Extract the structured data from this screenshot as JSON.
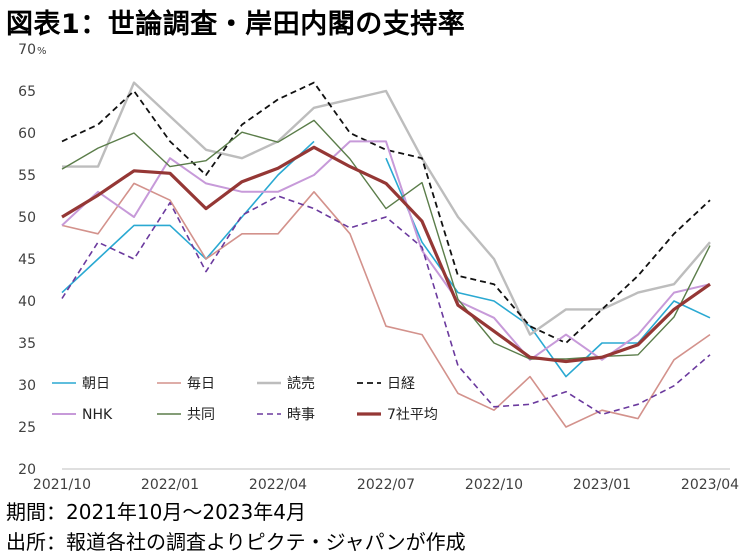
{
  "title": "図表1：世論調査・岸田内閣の支持率",
  "footer": {
    "period": "期間：2021年10月～2023年4月",
    "source": "出所：報道各社の調査よりピクテ・ジャパンが作成"
  },
  "chart_data": {
    "type": "line",
    "title": "図表1：世論調査・岸田内閣の支持率",
    "xlabel": "",
    "ylabel": "",
    "y_unit": "%",
    "ylim": [
      20,
      70
    ],
    "yticks": [
      20,
      25,
      30,
      35,
      40,
      45,
      50,
      55,
      60,
      65,
      70
    ],
    "grid": false,
    "legend_position": "bottom-left inside plot",
    "x": [
      "2021/10",
      "2021/11",
      "2021/12",
      "2022/01",
      "2022/02",
      "2022/03",
      "2022/04",
      "2022/05",
      "2022/06",
      "2022/07",
      "2022/08",
      "2022/09",
      "2022/10",
      "2022/11",
      "2022/12",
      "2023/01",
      "2023/02",
      "2023/03",
      "2023/04"
    ],
    "x_tick_labels": [
      "2021/10",
      "2022/01",
      "2022/04",
      "2022/07",
      "2022/10",
      "2023/01",
      "2023/04"
    ],
    "series": [
      {
        "name": "朝日",
        "color": "#2aa9d2",
        "dash": "solid",
        "width": 1.6,
        "values": [
          41,
          45,
          49,
          49,
          45,
          50,
          55,
          59,
          null,
          57,
          47,
          41,
          40,
          37,
          31,
          35,
          35,
          40,
          38
        ]
      },
      {
        "name": "毎日",
        "color": "#d3928c",
        "dash": "solid",
        "width": 1.6,
        "values": [
          49,
          48,
          54,
          52,
          45,
          48,
          48,
          53,
          48,
          37,
          36,
          29,
          27,
          31,
          25,
          27,
          26,
          33,
          36
        ]
      },
      {
        "name": "読売",
        "color": "#bdbdbd",
        "dash": "solid",
        "width": 2.4,
        "values": [
          56,
          56,
          66,
          62,
          58,
          57,
          59,
          63,
          64,
          65,
          57,
          50,
          45,
          36,
          39,
          39,
          41,
          42,
          47
        ]
      },
      {
        "name": "日経",
        "color": "#111111",
        "dash": "dashed",
        "width": 1.8,
        "values": [
          59,
          61,
          65,
          59,
          55,
          61,
          64,
          66,
          60,
          58,
          57,
          43,
          42,
          37,
          35,
          39,
          43,
          48,
          52
        ]
      },
      {
        "name": "NHK",
        "color": "#c79ad9",
        "dash": "solid",
        "width": 2.0,
        "values": [
          49,
          53,
          50,
          57,
          54,
          53,
          53,
          55,
          59,
          59,
          46,
          40,
          38,
          33,
          36,
          33,
          36,
          41,
          42
        ]
      },
      {
        "name": "共同",
        "color": "#5b7d4a",
        "dash": "solid",
        "width": 1.4,
        "values": [
          55.7,
          58.2,
          60,
          56,
          56.7,
          60.1,
          58.9,
          61.5,
          56.9,
          51,
          54.1,
          40.2,
          35,
          33.1,
          33.1,
          33.4,
          33.6,
          38.1,
          46.6
        ]
      },
      {
        "name": "時事",
        "color": "#6b3a9e",
        "dash": "dashed",
        "width": 1.6,
        "values": [
          40.3,
          47,
          45,
          51.7,
          43.5,
          50.2,
          52.5,
          51,
          48.7,
          50,
          46.4,
          32.3,
          27.4,
          27.7,
          29.2,
          26.5,
          27.7,
          29.9,
          33.6
        ]
      },
      {
        "name": "7社平均",
        "color": "#953735",
        "dash": "solid",
        "width": 3.2,
        "values": [
          50,
          52.6,
          55.5,
          55.2,
          51,
          54.2,
          55.8,
          58.3,
          56,
          54,
          49.5,
          39.5,
          36.4,
          33.3,
          32.8,
          33.3,
          34.8,
          39,
          42
        ]
      }
    ]
  }
}
